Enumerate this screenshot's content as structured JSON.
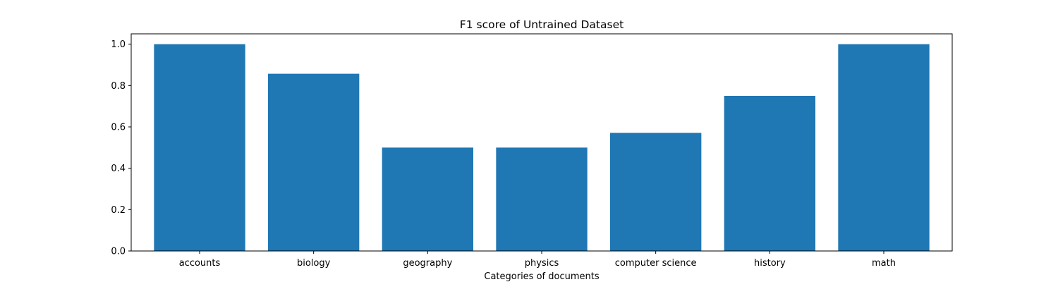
{
  "chart_data": {
    "type": "bar",
    "title": "F1 score of Untrained Dataset",
    "xlabel": "Categories of documents",
    "ylabel": "",
    "categories": [
      "accounts",
      "biology",
      "geography",
      "physics",
      "computer science",
      "history",
      "math"
    ],
    "values": [
      1.0,
      0.857,
      0.5,
      0.5,
      0.571,
      0.75,
      1.0
    ],
    "ylim": [
      0,
      1.05
    ],
    "yticks": [
      0.0,
      0.2,
      0.4,
      0.6,
      0.8,
      1.0
    ],
    "ytick_labels": [
      "0.0",
      "0.2",
      "0.4",
      "0.6",
      "0.8",
      "1.0"
    ],
    "bar_color": "#1f77b4",
    "grid": false,
    "legend": "none"
  }
}
